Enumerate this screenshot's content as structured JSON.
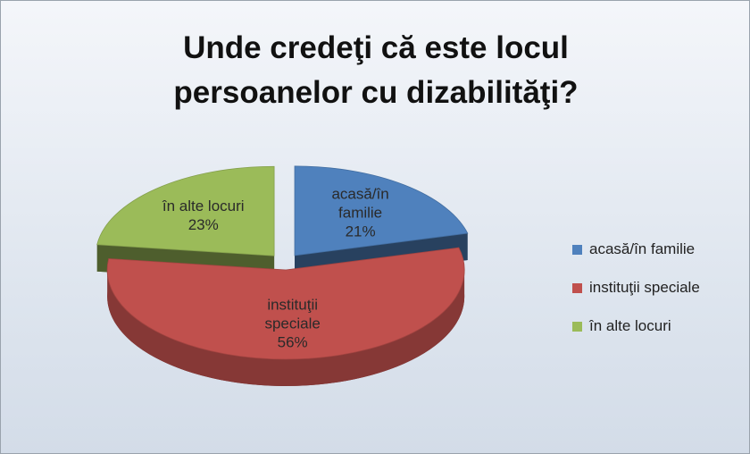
{
  "chart_data": {
    "type": "pie3d",
    "title": "Unde credeţi că este locul persoanelor cu dizabilităţi?",
    "categories": [
      "acasă/în familie",
      "instituţii speciale",
      "în alte locuri"
    ],
    "values": [
      21,
      56,
      23
    ],
    "value_labels": [
      "21%",
      "56%",
      "23%"
    ],
    "colors": [
      "#4f81bd",
      "#c0504d",
      "#9bbb59"
    ],
    "legend": "right"
  }
}
